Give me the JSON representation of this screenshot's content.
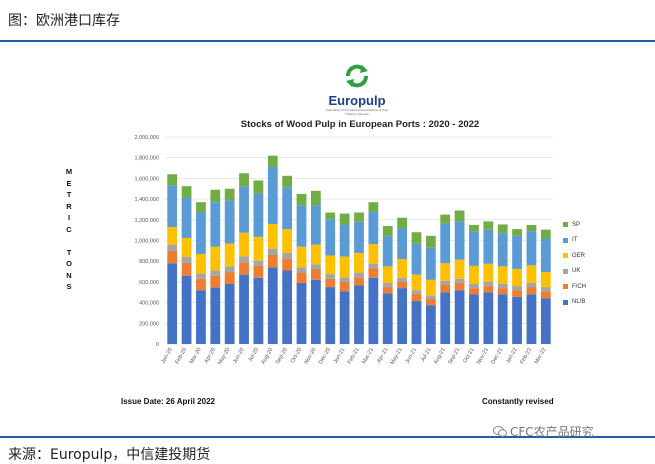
{
  "figure": {
    "title": "图：欧洲港口库存",
    "source": "来源：Europulp，中信建投期货",
    "watermark": "CFC农产品研究"
  },
  "logo": {
    "name": "Europulp",
    "tagline": "Federation of the National Associations of Pulp Traders in Europe"
  },
  "notes": {
    "issue_date": "Issue Date: 26 April 2022",
    "revised": "Constantly revised"
  },
  "colors": {
    "NL/B": "#4472c4",
    "F/CH": "#ed7d31",
    "UK": "#a5a5a5",
    "GER": "#ffc000",
    "IT": "#5b9bd5",
    "SP": "#70ad47"
  },
  "chart_data": {
    "type": "bar",
    "stacked": true,
    "title": "Stocks of Wood Pulp in European Ports : 2020 - 2022",
    "ylabel": "METRIC TONS",
    "ylim": [
      0,
      2000000
    ],
    "yticks": [
      "0",
      "200,000",
      "400,000",
      "600,000",
      "800,000",
      "1,000,000",
      "1,200,000",
      "1,400,000",
      "1,600,000",
      "1,800,000",
      "2,000,000"
    ],
    "grid": true,
    "legend_position": "right",
    "categories": [
      "Jan-20",
      "Feb-20",
      "Mar-20",
      "Apr-20",
      "May-20",
      "Jun-20",
      "Jul-20",
      "Aug-20",
      "Sep-20",
      "Oct-20",
      "Nov-20",
      "Dec-20",
      "Jan-21",
      "Feb-21",
      "Mar-21",
      "Apr-21",
      "May-21",
      "Jun-21",
      "Jul-21",
      "Aug-21",
      "Sep-21",
      "Oct-21",
      "Nov-21",
      "Dec-21",
      "Jan-22",
      "Feb-22",
      "Mar-22"
    ],
    "series": [
      {
        "name": "NL/B",
        "values": [
          780000,
          660000,
          520000,
          545000,
          580000,
          670000,
          640000,
          740000,
          710000,
          590000,
          620000,
          550000,
          510000,
          565000,
          640000,
          490000,
          540000,
          415000,
          375000,
          500000,
          520000,
          480000,
          500000,
          480000,
          455000,
          480000,
          440000
        ]
      },
      {
        "name": "F/CH",
        "values": [
          120000,
          125000,
          110000,
          115000,
          115000,
          120000,
          115000,
          120000,
          115000,
          100000,
          100000,
          80000,
          90000,
          80000,
          90000,
          60000,
          60000,
          70000,
          60000,
          70000,
          70000,
          60000,
          60000,
          60000,
          65000,
          70000,
          70000
        ]
      },
      {
        "name": "UK",
        "values": [
          60000,
          55000,
          50000,
          50000,
          55000,
          55000,
          50000,
          60000,
          55000,
          50000,
          50000,
          45000,
          45000,
          45000,
          45000,
          40000,
          40000,
          35000,
          35000,
          40000,
          40000,
          40000,
          40000,
          40000,
          40000,
          40000,
          40000
        ]
      },
      {
        "name": "GER",
        "values": [
          170000,
          185000,
          190000,
          230000,
          220000,
          230000,
          230000,
          240000,
          230000,
          200000,
          190000,
          180000,
          200000,
          190000,
          190000,
          160000,
          180000,
          150000,
          150000,
          170000,
          185000,
          175000,
          175000,
          170000,
          165000,
          170000,
          145000
        ]
      },
      {
        "name": "IT",
        "values": [
          400000,
          390000,
          400000,
          430000,
          420000,
          450000,
          420000,
          550000,
          400000,
          400000,
          380000,
          350000,
          310000,
          300000,
          310000,
          290000,
          300000,
          300000,
          310000,
          380000,
          370000,
          330000,
          330000,
          320000,
          320000,
          330000,
          325000
        ]
      },
      {
        "name": "SP",
        "values": [
          110000,
          110000,
          100000,
          120000,
          110000,
          125000,
          125000,
          110000,
          115000,
          110000,
          140000,
          65000,
          105000,
          90000,
          95000,
          100000,
          100000,
          110000,
          115000,
          90000,
          105000,
          65000,
          80000,
          85000,
          65000,
          60000,
          85000
        ]
      }
    ]
  }
}
